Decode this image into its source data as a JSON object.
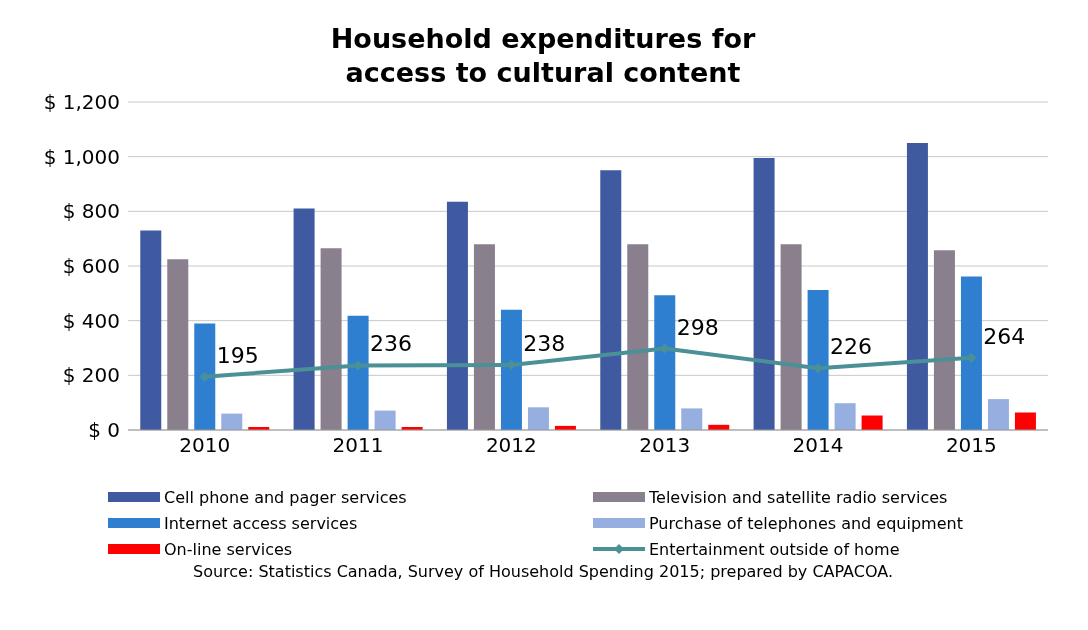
{
  "chart_data": {
    "type": "bar",
    "title": "Household expenditures for\naccess to cultural content",
    "categories": [
      "2010",
      "2011",
      "2012",
      "2013",
      "2014",
      "2015"
    ],
    "series": [
      {
        "name": "Cell phone and pager services",
        "color": "#3f5aa0",
        "values": [
          730,
          810,
          835,
          950,
          995,
          1050
        ]
      },
      {
        "name": "Television and satellite radio services",
        "color": "#8a7f8c",
        "values": [
          625,
          665,
          680,
          680,
          680,
          658
        ]
      },
      {
        "name": "Internet access services",
        "color": "#2f7fd0",
        "values": [
          390,
          418,
          440,
          493,
          512,
          562
        ]
      },
      {
        "name": "Purchase of telephones and equipment",
        "color": "#96aee0",
        "values": [
          60,
          71,
          83,
          79,
          98,
          113
        ]
      },
      {
        "name": "On-line services",
        "color": "#ff0000",
        "values": [
          11,
          11,
          15,
          19,
          53,
          64
        ]
      },
      {
        "name": "Entertainment outside of home",
        "type": "line",
        "color": "#4a9096",
        "values": [
          195,
          236,
          238,
          298,
          226,
          264
        ],
        "value_labels": [
          "195",
          "236",
          "238",
          "298",
          "226",
          "264"
        ]
      }
    ],
    "ylim": [
      0,
      1200
    ],
    "yticks": [
      {
        "value": 0,
        "label": "$ 0"
      },
      {
        "value": 200,
        "label": "$ 200"
      },
      {
        "value": 400,
        "label": "$ 400"
      },
      {
        "value": 600,
        "label": "$ 600"
      },
      {
        "value": 800,
        "label": "$ 800"
      },
      {
        "value": 1000,
        "label": "$ 1,000"
      },
      {
        "value": 1200,
        "label": "$ 1,200"
      }
    ],
    "grid": "y",
    "legend": "bottom",
    "marker": "diamond",
    "line_style": "solid",
    "annotations": [
      "Source: Statistics Canada, Survey of Household Spending 2015; prepared by CAPACOA."
    ]
  }
}
